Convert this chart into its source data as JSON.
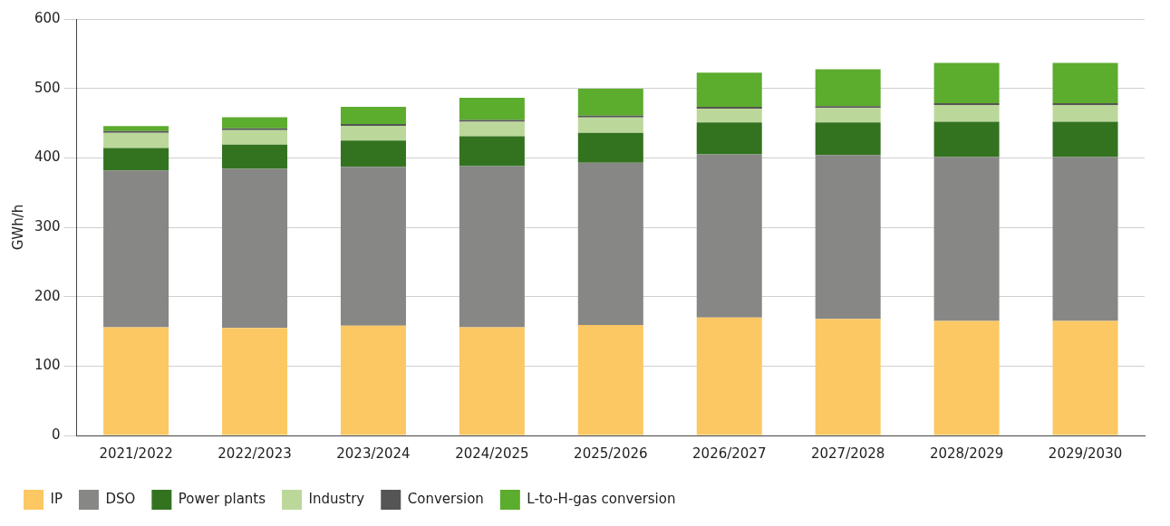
{
  "chart_data": {
    "type": "bar",
    "stacked": true,
    "ylabel": "GWh/h",
    "ylim": [
      0,
      600
    ],
    "yticks": [
      0,
      100,
      200,
      300,
      400,
      500,
      600
    ],
    "grid": "y",
    "legend": "bottom",
    "categories": [
      "2021/2022",
      "2022/2023",
      "2023/2024",
      "2024/2025",
      "2025/2026",
      "2026/2027",
      "2027/2028",
      "2028/2029",
      "2029/2030"
    ],
    "series": [
      {
        "name": "IP",
        "color": "#fcc864",
        "values": [
          156,
          155,
          158,
          156,
          159,
          170,
          168,
          165,
          165
        ]
      },
      {
        "name": "DSO",
        "color": "#878785",
        "values": [
          226,
          229,
          229,
          232,
          234,
          235,
          236,
          236,
          236
        ]
      },
      {
        "name": "Power plants",
        "color": "#337320",
        "values": [
          32,
          35,
          38,
          43,
          43,
          46,
          47,
          51,
          51
        ]
      },
      {
        "name": "Industry",
        "color": "#bbd89a",
        "values": [
          22,
          21,
          21,
          21,
          22,
          20,
          21,
          24,
          24
        ]
      },
      {
        "name": "Conversion",
        "color": "#555555",
        "values": [
          1,
          1,
          1,
          1,
          1,
          2,
          2,
          1,
          1
        ]
      },
      {
        "name": "L-to-H-gas conversion",
        "color": "#5cac2e",
        "values": [
          7,
          16,
          25,
          32,
          39,
          49,
          53,
          58,
          58
        ]
      }
    ]
  }
}
